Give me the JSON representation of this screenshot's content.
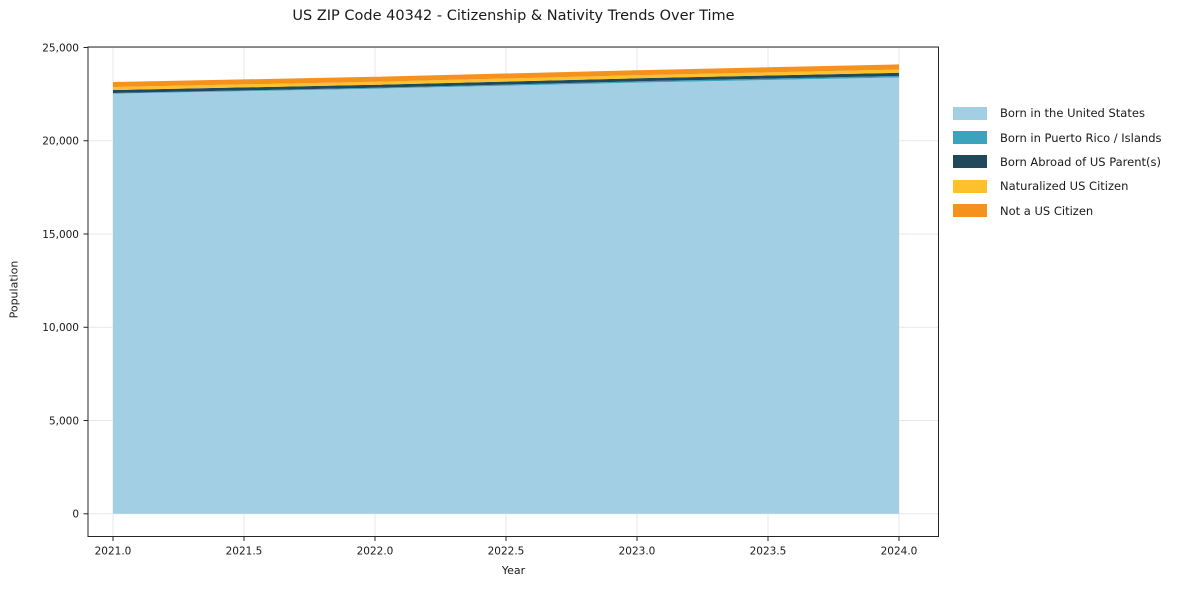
{
  "chart_data": {
    "type": "area",
    "stacked": true,
    "title": "US ZIP Code 40342 - Citizenship & Nativity Trends Over Time",
    "xlabel": "Year",
    "ylabel": "Population",
    "x": [
      2021,
      2022,
      2023,
      2024
    ],
    "series": [
      {
        "name": "Born in the United States",
        "color": "#a3cfe5",
        "values": [
          22530,
          22790,
          23120,
          23390
        ]
      },
      {
        "name": "Born in Puerto Rico / Islands",
        "color": "#3ba3be",
        "values": [
          30,
          50,
          70,
          90
        ]
      },
      {
        "name": "Born Abroad of US Parent(s)",
        "color": "#20495c",
        "values": [
          160,
          160,
          160,
          165
        ]
      },
      {
        "name": "Naturalized US Citizen",
        "color": "#fcc12b",
        "values": [
          160,
          160,
          165,
          170
        ]
      },
      {
        "name": "Not a US Citizen",
        "color": "#f5921e",
        "values": [
          270,
          270,
          270,
          280
        ]
      }
    ],
    "totals": [
      23150,
      23430,
      23785,
      24095
    ],
    "x_tick_values": [
      2021.0,
      2021.5,
      2022.0,
      2022.5,
      2023.0,
      2023.5,
      2024.0
    ],
    "x_tick_labels": [
      "2021.0",
      "2021.5",
      "2022.0",
      "2022.5",
      "2023.0",
      "2023.5",
      "2024.0"
    ],
    "y_tick_values": [
      0,
      5000,
      10000,
      15000,
      20000,
      25000
    ],
    "y_tick_labels": [
      "0",
      "5,000",
      "10,000",
      "15,000",
      "20,000",
      "25,000"
    ],
    "xlim": [
      2020.9,
      2024.15
    ],
    "ylim": [
      -1200,
      25100
    ],
    "grid": true,
    "grid_color": "#e7e7e7",
    "frame_color": "#262626",
    "legend_position": "center-right-outside",
    "legend_frame": false
  }
}
